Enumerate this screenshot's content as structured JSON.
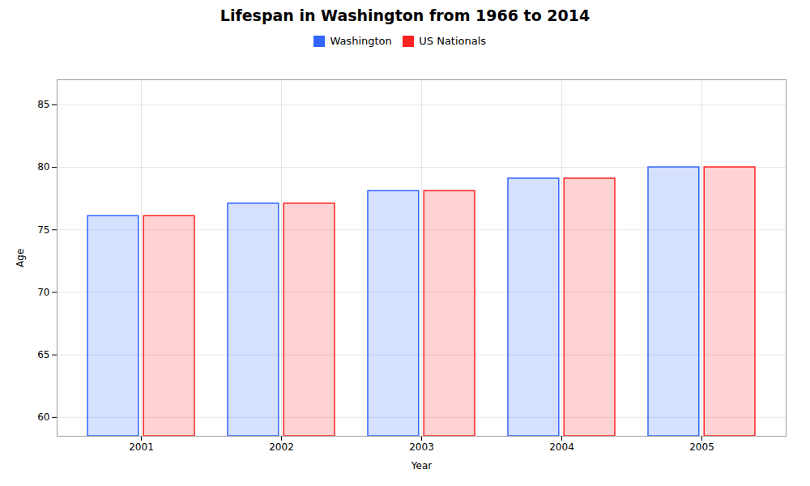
{
  "chart_data": {
    "type": "bar",
    "title": "Lifespan in Washington from 1966 to 2014",
    "xlabel": "Year",
    "ylabel": "Age",
    "categories": [
      "2001",
      "2002",
      "2003",
      "2004",
      "2005"
    ],
    "series": [
      {
        "name": "Washington",
        "color": "#3366ff",
        "values": [
          76.1,
          77.1,
          78.1,
          79.1,
          80.0
        ]
      },
      {
        "name": "US Nationals",
        "color": "#ff2222",
        "values": [
          76.1,
          77.1,
          78.1,
          79.1,
          80.0
        ]
      }
    ],
    "ylim": [
      58.5,
      87
    ],
    "yticks": [
      60,
      65,
      70,
      75,
      80,
      85
    ],
    "grid": true,
    "legend": "top"
  }
}
